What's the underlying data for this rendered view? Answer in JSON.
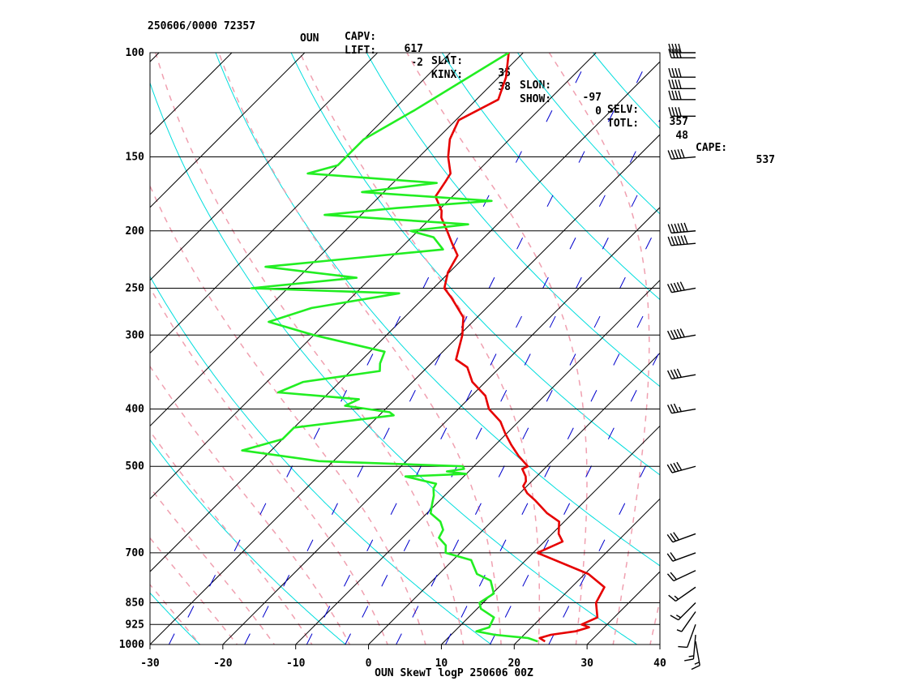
{
  "header": {
    "station_time": "250606/0000 72357",
    "station_id": "OUN",
    "indices_row1": [
      {
        "label": "LIFT:",
        "value": "-2"
      },
      {
        "label": "KINX:",
        "value": "38"
      },
      {
        "label": "SHOW:",
        "value": "0"
      },
      {
        "label": "TOTL:",
        "value": "48"
      },
      {
        "label": "CAPE:",
        "value": "537"
      }
    ],
    "indices_row2": [
      {
        "label": "CAPV:",
        "value": "617"
      },
      {
        "label": "SLAT:",
        "value": "35"
      },
      {
        "label": "SLON:",
        "value": "-97"
      },
      {
        "label": "SELV:",
        "value": "357"
      }
    ]
  },
  "colors": {
    "temperature": "#e60000",
    "dewpoint": "#22ee22",
    "isotherm": "#000000",
    "dry_adiabat": "#00dddd",
    "moist_adiabat": "#f0a0b0",
    "mixing_ratio": "#0000cc",
    "isobar": "#000000"
  },
  "chart_data": {
    "type": "line",
    "title": "OUN SkewT logP 250606 00Z",
    "xlabel": "",
    "ylabel": "",
    "xlim": [
      -30,
      40
    ],
    "ylim": [
      1000,
      100
    ],
    "y_scale": "log",
    "x_ticks": [
      "-30",
      "-20",
      "-10",
      "0",
      "10",
      "20",
      "30",
      "40"
    ],
    "x_tick_values": [
      -30,
      -20,
      -10,
      0,
      10,
      20,
      30,
      40
    ],
    "y_ticks": [
      "100",
      "150",
      "200",
      "250",
      "300",
      "400",
      "500",
      "700",
      "850",
      "925",
      "1000"
    ],
    "y_tick_values": [
      100,
      150,
      200,
      250,
      300,
      400,
      500,
      700,
      850,
      925,
      1000
    ],
    "series": [
      {
        "key": "temperature",
        "points": [
          [
            988,
            23.8
          ],
          [
            975,
            22.6
          ],
          [
            963,
            23.7
          ],
          [
            950,
            26.6
          ],
          [
            935,
            27.9
          ],
          [
            925,
            26.5
          ],
          [
            900,
            27.7
          ],
          [
            850,
            25.5
          ],
          [
            800,
            24.5
          ],
          [
            760,
            20.5
          ],
          [
            700,
            10.6
          ],
          [
            670,
            12.5
          ],
          [
            650,
            10.9
          ],
          [
            620,
            9.3
          ],
          [
            600,
            6.5
          ],
          [
            570,
            3.0
          ],
          [
            555,
            1.0
          ],
          [
            540,
            -0.5
          ],
          [
            530,
            -0.8
          ],
          [
            520,
            -1.5
          ],
          [
            505,
            -3.0
          ],
          [
            500,
            -2.6
          ],
          [
            480,
            -5.3
          ],
          [
            460,
            -7.8
          ],
          [
            440,
            -10.2
          ],
          [
            420,
            -12.5
          ],
          [
            400,
            -15.8
          ],
          [
            380,
            -18.1
          ],
          [
            360,
            -21.8
          ],
          [
            340,
            -24.5
          ],
          [
            330,
            -27.1
          ],
          [
            300,
            -29.6
          ],
          [
            280,
            -31.9
          ],
          [
            260,
            -36.1
          ],
          [
            250,
            -38.5
          ],
          [
            235,
            -40.2
          ],
          [
            220,
            -41.2
          ],
          [
            210,
            -43.6
          ],
          [
            200,
            -46.0
          ],
          [
            190,
            -48.6
          ],
          [
            185,
            -49.5
          ],
          [
            175,
            -52.3
          ],
          [
            165,
            -53.0
          ],
          [
            160,
            -53.4
          ],
          [
            150,
            -56.0
          ],
          [
            140,
            -58.2
          ],
          [
            130,
            -59.6
          ],
          [
            120,
            -57.0
          ],
          [
            110,
            -59.0
          ],
          [
            100,
            -62.0
          ]
        ]
      },
      {
        "key": "dewpoint",
        "points": [
          [
            988,
            22.8
          ],
          [
            975,
            21.0
          ],
          [
            963,
            16.0
          ],
          [
            950,
            13.0
          ],
          [
            935,
            14.2
          ],
          [
            920,
            13.9
          ],
          [
            900,
            13.5
          ],
          [
            870,
            10.5
          ],
          [
            850,
            9.5
          ],
          [
            820,
            10.2
          ],
          [
            780,
            8.0
          ],
          [
            760,
            5.2
          ],
          [
            720,
            2.5
          ],
          [
            700,
            -2.0
          ],
          [
            680,
            -3.0
          ],
          [
            660,
            -5.0
          ],
          [
            640,
            -5.5
          ],
          [
            620,
            -7.0
          ],
          [
            600,
            -9.5
          ],
          [
            580,
            -10.5
          ],
          [
            560,
            -11.5
          ],
          [
            545,
            -12.5
          ],
          [
            535,
            -12.8
          ],
          [
            520,
            -18.0
          ],
          [
            515,
            -10.0
          ],
          [
            510,
            -13.0
          ],
          [
            505,
            -11.0
          ],
          [
            500,
            -11.5
          ],
          [
            490,
            -32.0
          ],
          [
            470,
            -44.0
          ],
          [
            450,
            -40.0
          ],
          [
            430,
            -40.0
          ],
          [
            410,
            -28.0
          ],
          [
            405,
            -29.0
          ],
          [
            395,
            -36.0
          ],
          [
            385,
            -35.0
          ],
          [
            375,
            -47.0
          ],
          [
            360,
            -45.0
          ],
          [
            345,
            -36.0
          ],
          [
            335,
            -37.0
          ],
          [
            320,
            -38.0
          ],
          [
            300,
            -50.0
          ],
          [
            285,
            -58.0
          ],
          [
            270,
            -54.0
          ],
          [
            255,
            -44.0
          ],
          [
            250,
            -65.0
          ],
          [
            240,
            -52.0
          ],
          [
            230,
            -66.0
          ],
          [
            215,
            -44.0
          ],
          [
            205,
            -47.0
          ],
          [
            200,
            -51.0
          ],
          [
            195,
            -44.0
          ],
          [
            188,
            -65.0
          ],
          [
            183,
            -56.0
          ],
          [
            178,
            -44.0
          ],
          [
            172,
            -63.0
          ],
          [
            166,
            -54.0
          ],
          [
            160,
            -73.0
          ],
          [
            155,
            -70.0
          ],
          [
            150,
            -70.0
          ],
          [
            140,
            -70.0
          ],
          [
            125,
            -67.0
          ],
          [
            100,
            -62.0
          ]
        ]
      }
    ],
    "wind_barbs": [
      {
        "p": 988,
        "dir": 170,
        "spd": 15
      },
      {
        "p": 963,
        "dir": 185,
        "spd": 15
      },
      {
        "p": 925,
        "dir": 200,
        "spd": 10
      },
      {
        "p": 880,
        "dir": 215,
        "spd": 5
      },
      {
        "p": 850,
        "dir": 225,
        "spd": 15
      },
      {
        "p": 800,
        "dir": 235,
        "spd": 15
      },
      {
        "p": 750,
        "dir": 245,
        "spd": 20
      },
      {
        "p": 700,
        "dir": 250,
        "spd": 20
      },
      {
        "p": 650,
        "dir": 250,
        "spd": 30
      },
      {
        "p": 500,
        "dir": 255,
        "spd": 40
      },
      {
        "p": 400,
        "dir": 260,
        "spd": 35
      },
      {
        "p": 350,
        "dir": 260,
        "spd": 40
      },
      {
        "p": 300,
        "dir": 260,
        "spd": 50
      },
      {
        "p": 250,
        "dir": 260,
        "spd": 50
      },
      {
        "p": 210,
        "dir": 265,
        "spd": 60
      },
      {
        "p": 200,
        "dir": 265,
        "spd": 60
      },
      {
        "p": 150,
        "dir": 265,
        "spd": 50
      },
      {
        "p": 128,
        "dir": 270,
        "spd": 40
      },
      {
        "p": 120,
        "dir": 270,
        "spd": 40
      },
      {
        "p": 115,
        "dir": 270,
        "spd": 40
      },
      {
        "p": 110,
        "dir": 270,
        "spd": 40
      },
      {
        "p": 102,
        "dir": 270,
        "spd": 40
      },
      {
        "p": 100,
        "dir": 270,
        "spd": 40
      }
    ]
  }
}
